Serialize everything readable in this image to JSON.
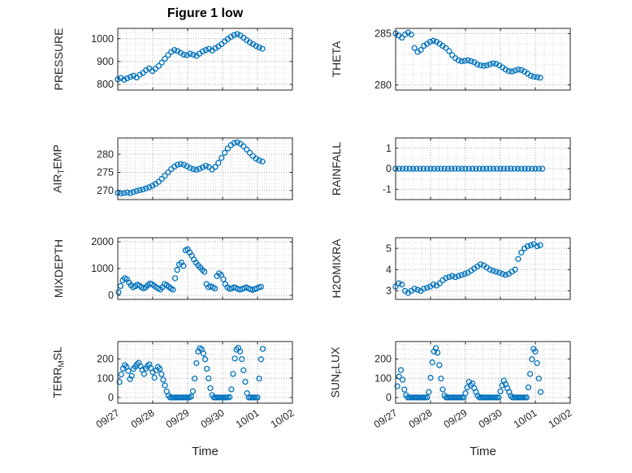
{
  "title": "Figure 1 low",
  "x_axis": {
    "label": "Time",
    "lim_days": [
      0,
      5
    ],
    "ticks_days": [
      0,
      1,
      2,
      3,
      4,
      5
    ],
    "tick_labels": [
      "09/27",
      "09/28",
      "09/29",
      "09/30",
      "10/01",
      "10/02"
    ]
  },
  "style": {
    "marker_color": "#0072BD",
    "axis_color": "#262626",
    "grid_color": "#a8a8a8",
    "minor_grid_color": "#d8d8d8",
    "background": "#ffffff"
  },
  "chart_data": [
    {
      "type": "scatter",
      "name": "PRESSURE",
      "position": "row1-left",
      "ylabel_parts": [
        {
          "text": "PRESSURE"
        }
      ],
      "ylim": [
        775,
        1045
      ],
      "yticks": [
        800,
        900,
        1000
      ],
      "yminor": 25,
      "x0_days": 0,
      "dx_days": 0.09,
      "y": [
        822,
        828,
        820,
        826,
        833,
        838,
        830,
        842,
        850,
        862,
        870,
        858,
        868,
        880,
        895,
        912,
        928,
        942,
        950,
        946,
        938,
        930,
        928,
        934,
        930,
        925,
        934,
        944,
        950,
        955,
        948,
        958,
        966,
        976,
        988,
        998,
        1008,
        1016,
        1020,
        1014,
        1004,
        994,
        984,
        976,
        968,
        962,
        956
      ]
    },
    {
      "type": "scatter",
      "name": "THETA",
      "position": "row1-right",
      "ylabel_parts": [
        {
          "text": "THETA"
        }
      ],
      "ylim": [
        279.5,
        285.5
      ],
      "yticks": [
        280,
        285
      ],
      "yminor": 1,
      "x0_days": 0,
      "dx_days": 0.09,
      "y": [
        285.0,
        284.8,
        284.6,
        284.9,
        285.1,
        284.9,
        283.6,
        283.2,
        283.4,
        283.8,
        284.0,
        284.2,
        284.3,
        284.2,
        284.0,
        283.8,
        283.6,
        283.3,
        282.9,
        282.6,
        282.4,
        282.3,
        282.35,
        282.4,
        282.3,
        282.2,
        282.0,
        281.9,
        281.85,
        281.9,
        282.0,
        282.1,
        282.05,
        281.9,
        281.7,
        281.5,
        281.35,
        281.3,
        281.4,
        281.5,
        281.45,
        281.3,
        281.1,
        280.9,
        280.8,
        280.75,
        280.7
      ]
    },
    {
      "type": "scatter",
      "name": "AIR_TEMP",
      "position": "row2-left",
      "ylabel_parts": [
        {
          "text": "AIR"
        },
        {
          "text": "T",
          "sub": true
        },
        {
          "text": "EMP"
        }
      ],
      "ylim": [
        267.5,
        284.5
      ],
      "yticks": [
        270,
        275,
        280
      ],
      "yminor": 1,
      "x0_days": 0,
      "dx_days": 0.09,
      "y": [
        269.4,
        269.2,
        269.3,
        269.5,
        269.3,
        269.6,
        269.9,
        270.1,
        270.3,
        270.6,
        270.9,
        271.3,
        271.8,
        272.4,
        273.2,
        274.1,
        275.0,
        275.9,
        276.6,
        277.1,
        277.3,
        277.1,
        276.7,
        276.2,
        275.9,
        275.7,
        276.0,
        276.4,
        276.8,
        276.5,
        275.8,
        276.5,
        277.6,
        279.0,
        280.4,
        281.6,
        282.5,
        283.1,
        283.3,
        282.9,
        282.2,
        281.3,
        280.4,
        279.5,
        278.8,
        278.3,
        278.0
      ]
    },
    {
      "type": "scatter",
      "name": "RAINFALL",
      "position": "row2-right",
      "ylabel_parts": [
        {
          "text": "RAINFALL"
        }
      ],
      "ylim": [
        -1.5,
        1.5
      ],
      "yticks": [
        -1,
        0,
        1
      ],
      "yminor": 0.5,
      "x0_days": 0,
      "dx_days": 0.1,
      "y": [
        0,
        0,
        0,
        0,
        0,
        0,
        0,
        0,
        0,
        0,
        0,
        0,
        0,
        0,
        0,
        0,
        0,
        0,
        0,
        0,
        0,
        0,
        0,
        0,
        0,
        0,
        0,
        0,
        0,
        0,
        0,
        0,
        0,
        0,
        0,
        0,
        0,
        0,
        0,
        0,
        0,
        0,
        0
      ]
    },
    {
      "type": "scatter",
      "name": "MIXDEPTH",
      "position": "row3-left",
      "ylabel_parts": [
        {
          "text": "MIXDEPTH"
        }
      ],
      "ylim": [
        -150,
        2150
      ],
      "yticks": [
        0,
        1000,
        2000
      ],
      "yminor": 250,
      "x0_days": 0.02,
      "dx_days": 0.06,
      "y": [
        120,
        350,
        560,
        640,
        600,
        480,
        380,
        300,
        340,
        400,
        360,
        300,
        260,
        300,
        380,
        440,
        420,
        360,
        300,
        260,
        220,
        300,
        420,
        380,
        320,
        260,
        210,
        640,
        950,
        1150,
        1220,
        1100,
        1680,
        1720,
        1600,
        1480,
        1340,
        1220,
        1120,
        1040,
        950,
        880,
        420,
        300,
        340,
        300,
        260,
        720,
        820,
        760,
        600,
        420,
        300,
        240,
        260,
        300,
        280,
        240,
        210,
        240,
        270,
        300,
        260,
        230,
        200,
        230,
        260,
        300,
        320
      ]
    },
    {
      "type": "scatter",
      "name": "H2OMIXRA",
      "position": "row3-right",
      "ylabel_parts": [
        {
          "text": "H2OMIXRA"
        }
      ],
      "ylim": [
        2.6,
        5.5
      ],
      "yticks": [
        3,
        4,
        5
      ],
      "yminor": 0.25,
      "x0_days": 0,
      "dx_days": 0.09,
      "y": [
        3.2,
        3.35,
        3.3,
        3.0,
        2.9,
        3.0,
        3.1,
        3.05,
        3.0,
        3.1,
        3.15,
        3.2,
        3.3,
        3.25,
        3.35,
        3.5,
        3.6,
        3.65,
        3.7,
        3.65,
        3.7,
        3.75,
        3.8,
        3.85,
        3.95,
        4.05,
        4.15,
        4.25,
        4.2,
        4.1,
        4.0,
        3.95,
        3.9,
        3.85,
        3.8,
        3.75,
        3.8,
        3.9,
        4.0,
        4.5,
        4.8,
        5.0,
        5.1,
        5.15,
        5.2,
        5.1,
        5.15
      ]
    },
    {
      "type": "scatter",
      "name": "TERR_MSL",
      "position": "row4-left",
      "ylabel_parts": [
        {
          "text": "TERR"
        },
        {
          "text": "M",
          "sub": true
        },
        {
          "text": "SL"
        }
      ],
      "ylim": [
        -30,
        290
      ],
      "yticks": [
        0,
        100,
        200
      ],
      "yminor": 25,
      "x0_days": 0.05,
      "dx_days": 0.05,
      "y": [
        80,
        120,
        150,
        168,
        158,
        138,
        95,
        112,
        148,
        160,
        172,
        180,
        162,
        143,
        122,
        150,
        163,
        172,
        152,
        131,
        102,
        140,
        158,
        149,
        121,
        92,
        62,
        31,
        10,
        0,
        0,
        0,
        0,
        0,
        0,
        0,
        0,
        0,
        0,
        0,
        0,
        5,
        32,
        98,
        178,
        238,
        256,
        249,
        228,
        198,
        149,
        99,
        48,
        12,
        0,
        0,
        0,
        0,
        0,
        0,
        0,
        0,
        0,
        2,
        42,
        122,
        202,
        248,
        257,
        238,
        199,
        141,
        81,
        22,
        0,
        0,
        0,
        0,
        0,
        0,
        98,
        198,
        252
      ]
    },
    {
      "type": "scatter",
      "name": "SUN_FLUX",
      "position": "row4-right",
      "ylabel_parts": [
        {
          "text": "SUN"
        },
        {
          "text": "F",
          "sub": true
        },
        {
          "text": "LUX"
        }
      ],
      "ylim": [
        -30,
        290
      ],
      "yticks": [
        0,
        100,
        200
      ],
      "yminor": 25,
      "x0_days": 0.05,
      "dx_days": 0.05,
      "y": [
        58,
        108,
        142,
        92,
        41,
        12,
        0,
        0,
        0,
        0,
        0,
        0,
        0,
        0,
        0,
        0,
        0,
        0,
        28,
        102,
        182,
        238,
        256,
        232,
        168,
        98,
        42,
        10,
        0,
        0,
        0,
        0,
        0,
        0,
        0,
        0,
        0,
        0,
        0,
        22,
        52,
        81,
        62,
        72,
        48,
        28,
        9,
        0,
        0,
        0,
        0,
        0,
        0,
        0,
        0,
        0,
        0,
        0,
        0,
        31,
        62,
        88,
        68,
        48,
        28,
        8,
        0,
        0,
        0,
        0,
        0,
        0,
        0,
        0,
        0,
        52,
        122,
        198,
        252,
        238,
        178,
        98,
        28
      ]
    }
  ]
}
